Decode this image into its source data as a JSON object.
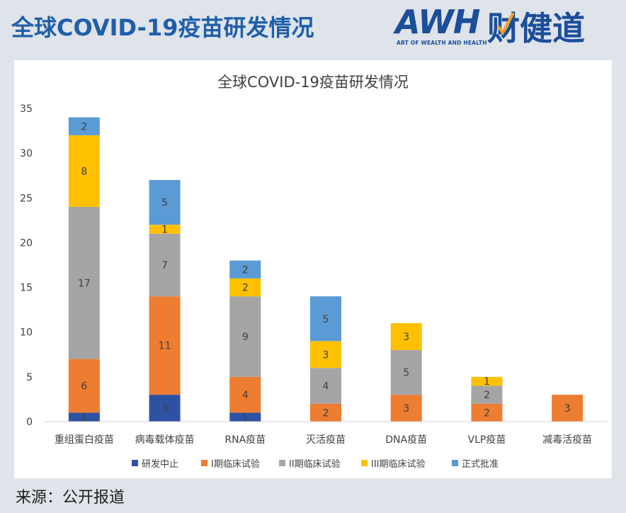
{
  "header": {
    "title": "全球COVID-19疫苗研发情况"
  },
  "brand": {
    "logo_text": "AWH",
    "name_cn": "财健道",
    "tagline": "ART OF WEALTH AND HEALTH",
    "color": "#1b4f9a",
    "accent": "#f2a21b"
  },
  "source": {
    "text": "来源：公开报道"
  },
  "chart_data": {
    "type": "bar",
    "stacked": true,
    "title": "全球COVID-19疫苗研发情况",
    "xlabel": "",
    "ylabel": "",
    "ylim": [
      0,
      35
    ],
    "yticks": [
      0,
      5,
      10,
      15,
      20,
      25,
      30,
      35
    ],
    "grid": false,
    "legend_position": "bottom",
    "categories": [
      "重组蛋白疫苗",
      "病毒载体疫苗",
      "RNA疫苗",
      "灭活疫苗",
      "DNA疫苗",
      "VLP疫苗",
      "减毒活疫苗"
    ],
    "series": [
      {
        "name": "研发中止",
        "color": "#2e52a3",
        "values": [
          1,
          3,
          1,
          0,
          0,
          0,
          0
        ]
      },
      {
        "name": "I期临床试验",
        "color": "#ed7d31",
        "values": [
          6,
          11,
          4,
          2,
          3,
          2,
          3
        ]
      },
      {
        "name": "II期临床试验",
        "color": "#a5a5a5",
        "values": [
          17,
          7,
          9,
          4,
          5,
          2,
          0
        ]
      },
      {
        "name": "III期临床试验",
        "color": "#ffc000",
        "values": [
          8,
          1,
          2,
          3,
          3,
          1,
          0
        ]
      },
      {
        "name": "正式批准",
        "color": "#5b9bd5",
        "values": [
          2,
          5,
          2,
          5,
          0,
          0,
          0
        ]
      }
    ]
  }
}
